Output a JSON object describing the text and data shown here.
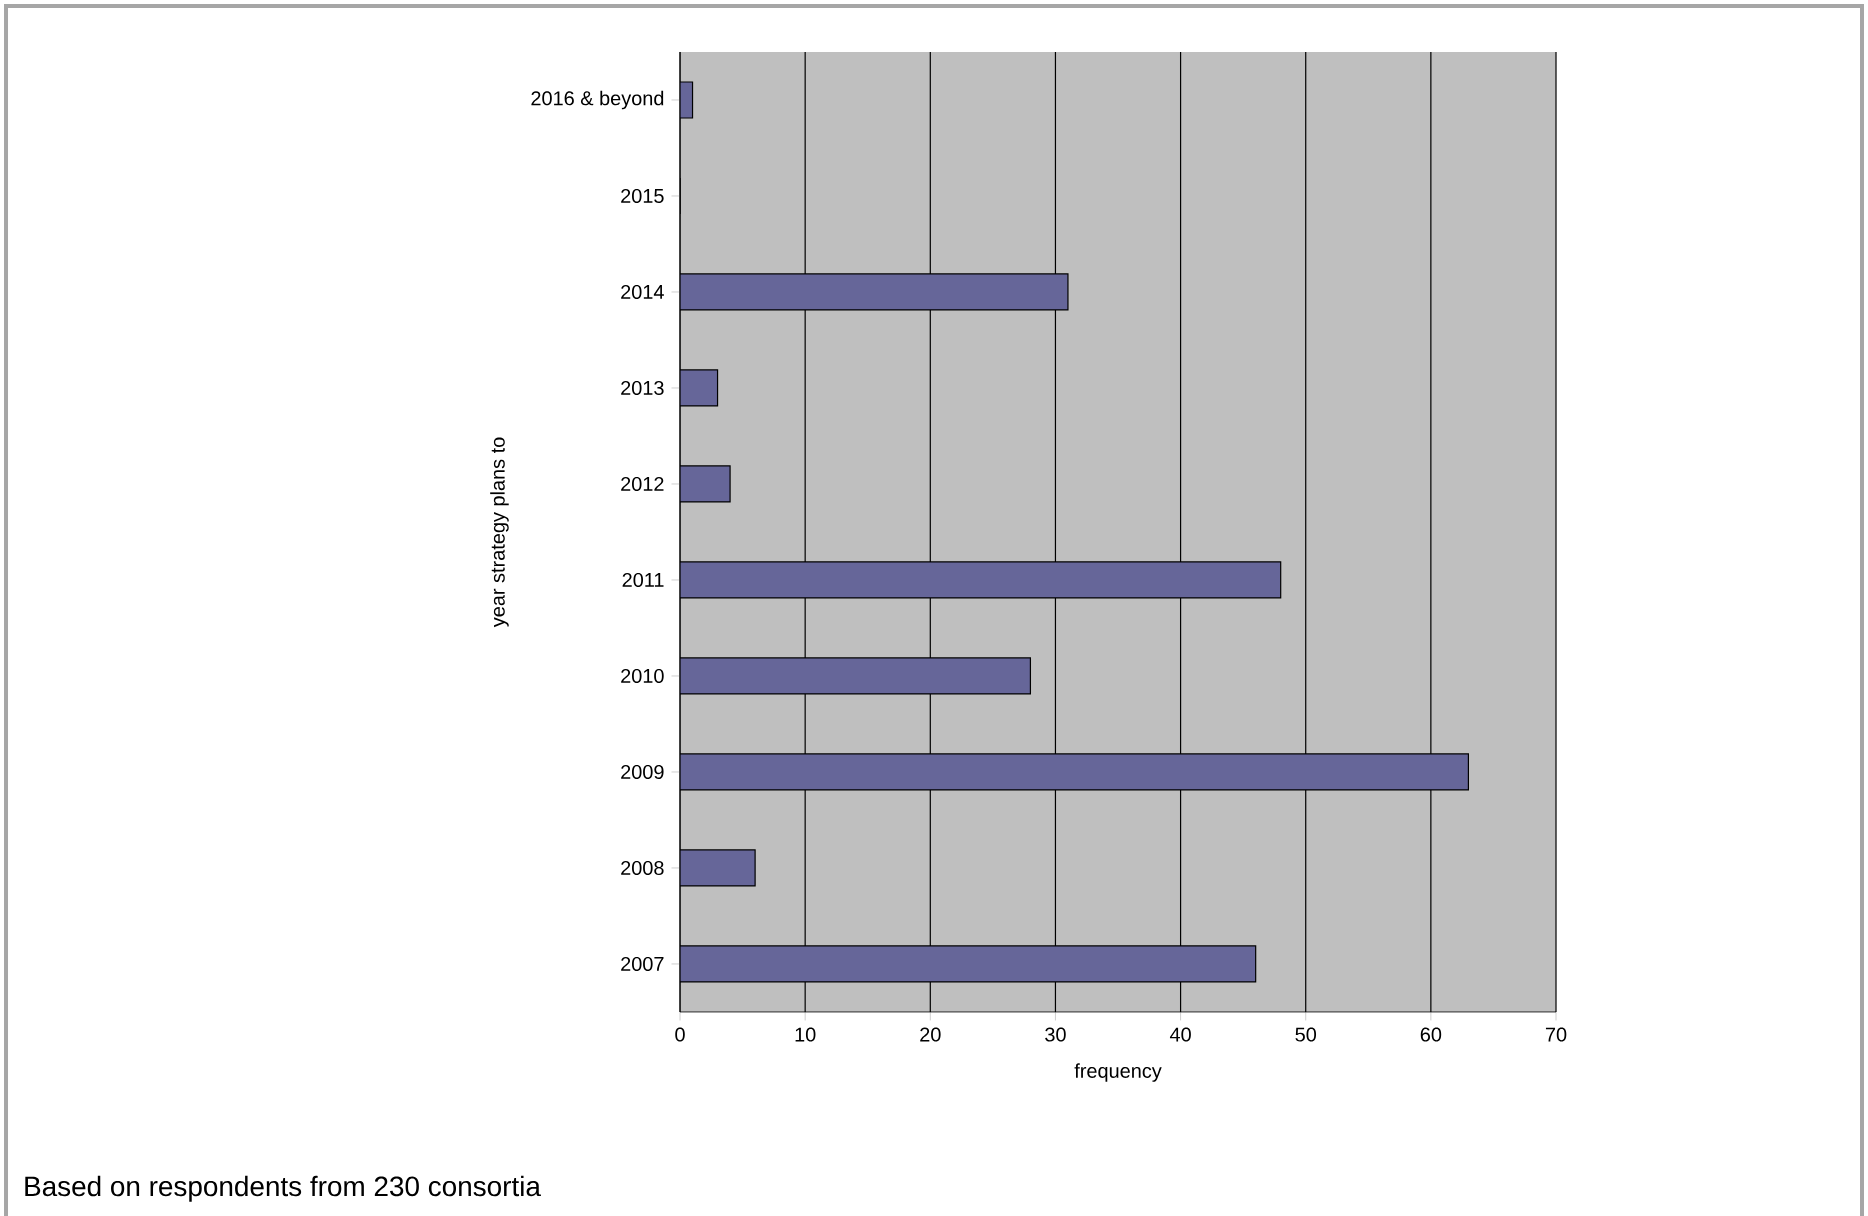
{
  "chart_data": {
    "type": "bar",
    "orientation": "horizontal",
    "categories": [
      "2016 & beyond",
      "2015",
      "2014",
      "2013",
      "2012",
      "2011",
      "2010",
      "2009",
      "2008",
      "2007"
    ],
    "values": [
      1,
      0,
      31,
      3,
      4,
      48,
      28,
      63,
      6,
      46
    ],
    "color": "#666699",
    "xlabel": "frequency",
    "ylabel": "year strategy plans to",
    "xlim": [
      0,
      70
    ],
    "xticks": [
      0,
      10,
      20,
      30,
      40,
      50,
      60,
      70
    ],
    "grid": "x",
    "annotations": [
      "Based on respondents from 230 consortia"
    ]
  }
}
